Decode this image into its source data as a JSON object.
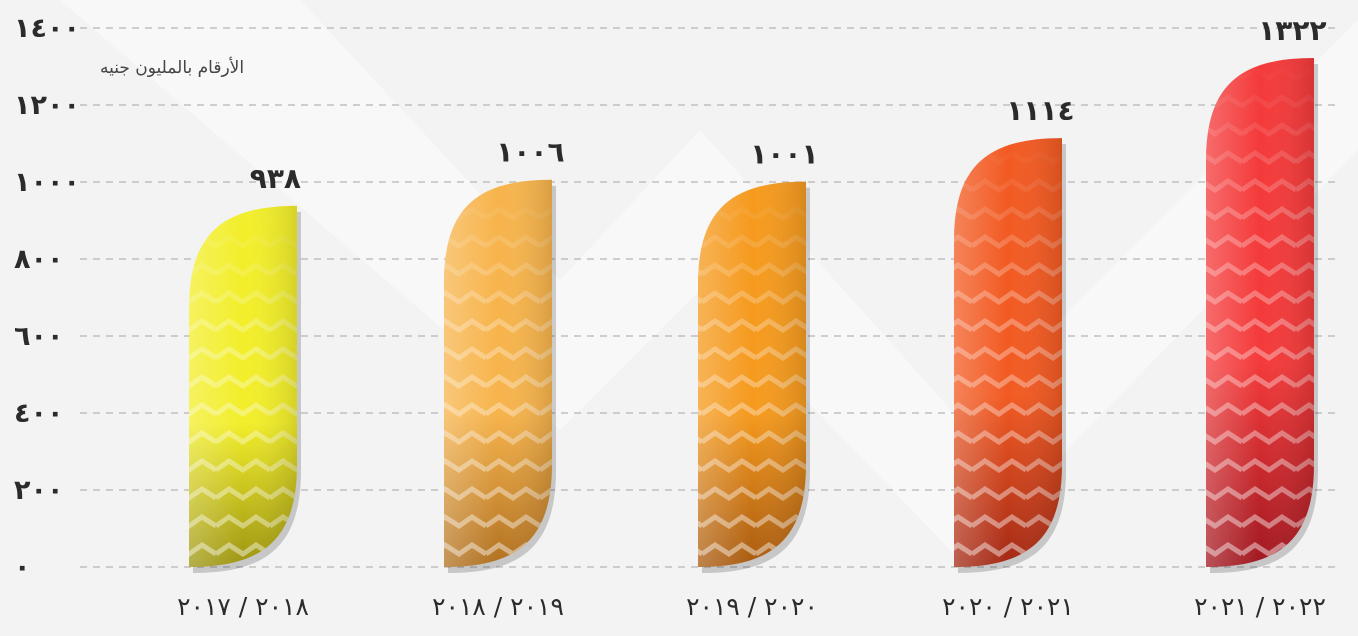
{
  "chart_data": {
    "type": "bar",
    "subtitle": "الأرقام بالمليون جنيه",
    "categories": [
      "٢٠١٨ / ٢٠١٧",
      "٢٠١٩ / ٢٠١٨",
      "٢٠٢٠ / ٢٠١٩",
      "٢٠٢١ / ٢٠٢٠",
      "٢٠٢٢ / ٢٠٢١"
    ],
    "values": [
      938,
      1006,
      1001,
      1114,
      1322
    ],
    "value_labels": [
      "٩٣٨",
      "١٠٠٦",
      "١٠٠١",
      "١١١٤",
      "١٣٢٢"
    ],
    "y_ticks": [
      0,
      200,
      400,
      600,
      800,
      1000,
      1200,
      1400
    ],
    "y_tick_labels": [
      "٠",
      "٢٠٠",
      "٤٠٠",
      "٦٠٠",
      "٨٠٠",
      "١٠٠٠",
      "١٢٠٠",
      "١٤٠٠"
    ],
    "ylim": [
      0,
      1400
    ],
    "grid": true,
    "bar_colors": [
      [
        "#f2ee2a",
        "#9c9410"
      ],
      [
        "#f7b44c",
        "#b07020"
      ],
      [
        "#f59a1e",
        "#a85a10"
      ],
      [
        "#f25a22",
        "#a32815"
      ],
      [
        "#f43a3a",
        "#a01820"
      ]
    ]
  }
}
